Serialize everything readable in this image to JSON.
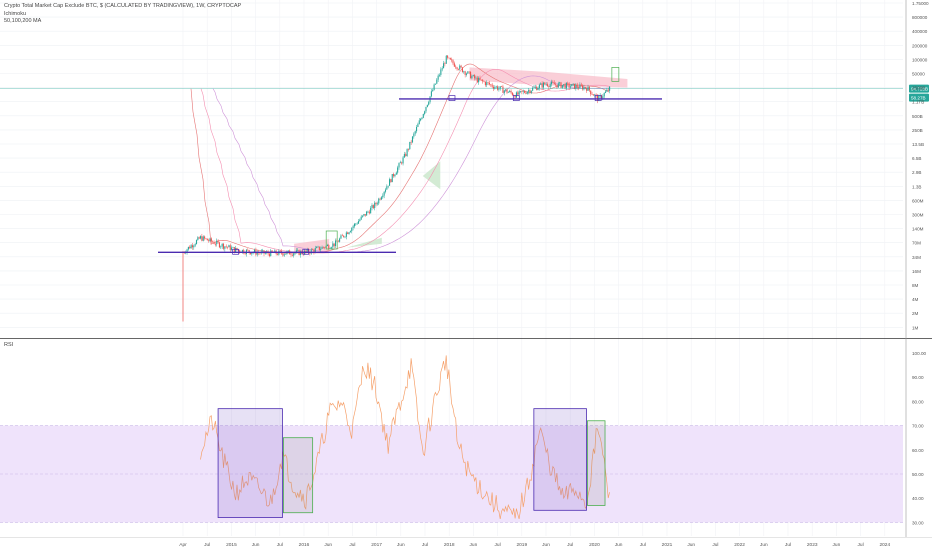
{
  "header": {
    "title": "Crypto Total Market Cap Exclude BTC, $ (CALCULATED BY TRADINGVIEW), 1W, CRYPTOCAP",
    "indicator_1": "Ichimoku",
    "indicator_2": "50,100,200 MA"
  },
  "rsi_panel": {
    "title": "RSI"
  },
  "price_tags": {
    "last": "94.723B",
    "ma": "58.27B"
  },
  "colors": {
    "candle_up": "#26a69a",
    "candle_down": "#ef5350",
    "support_line": "#4b2bb0",
    "rsi_line": "#f5a06a",
    "rsi_band": "#efe3fb",
    "box_purple": "#4b2bb0",
    "box_green": "#4caf50",
    "tag_bg": "#26a69a"
  },
  "chart_data": [
    {
      "type": "line",
      "series_desc": "weekly candles, log scale",
      "yscale": "log",
      "y_tick_labels": [
        "1.75000",
        "800000",
        "400000",
        "200000",
        "100000",
        "50000",
        "2500B",
        "1.1TB",
        "500B",
        "250B",
        "13.5B",
        "6.5B",
        "2.9B",
        "1.3B",
        "600M",
        "300M",
        "140M",
        "70M",
        "34M",
        "16M",
        "8M",
        "4M",
        "2M",
        "1M"
      ],
      "x_tick_labels": [
        "Apr",
        "Jul",
        "2015",
        "Jun",
        "Jul",
        "2016",
        "Jun",
        "Jul",
        "2017",
        "Jun",
        "Jul",
        "2018",
        "Jun",
        "Jul",
        "2019",
        "Jun",
        "Jul",
        "2020",
        "Jun",
        "Jul",
        "2021",
        "Jun",
        "Jul",
        "2022",
        "Jun",
        "Jul",
        "2023",
        "Jun",
        "Jul",
        "2024"
      ],
      "series": [
        {
          "name": "price",
          "x": [
            "2014-04",
            "2014-07",
            "2015-01",
            "2015-06",
            "2016-01",
            "2016-06",
            "2017-01",
            "2017-06",
            "2018-01",
            "2018-06",
            "2019-01",
            "2019-06",
            "2020-01",
            "2020-03",
            "2020-05"
          ],
          "values": [
            40,
            80,
            45,
            38,
            40,
            60,
            400,
            4000,
            400000,
            150000,
            70000,
            120000,
            100000,
            58000,
            94723
          ]
        }
      ],
      "annotations": [
        "support line 2014-2016 at ~40M",
        "support line 2018-2020 at ~58B",
        "Ichimoku cloud"
      ]
    },
    {
      "type": "line",
      "title": "RSI",
      "ylim": [
        25,
        105
      ],
      "y_tick_labels": [
        "100.00",
        "90.00",
        "80.00",
        "70.00",
        "60.00",
        "50.00",
        "40.00",
        "30.00"
      ],
      "band": [
        30,
        70
      ],
      "series": [
        {
          "name": "RSI",
          "x": [
            "2014-07",
            "2014-09",
            "2014-11",
            "2015-01",
            "2015-03",
            "2015-05",
            "2015-07",
            "2015-09",
            "2015-11",
            "2016-01",
            "2016-03",
            "2016-05",
            "2016-07",
            "2016-09",
            "2016-11",
            "2017-01",
            "2017-03",
            "2017-05",
            "2017-07",
            "2017-09",
            "2017-11",
            "2018-01",
            "2018-03",
            "2018-05",
            "2018-07",
            "2018-09",
            "2018-11",
            "2019-01",
            "2019-03",
            "2019-05",
            "2019-07",
            "2019-09",
            "2019-11",
            "2020-01",
            "2020-03",
            "2020-05"
          ],
          "values": [
            60,
            72,
            55,
            42,
            48,
            44,
            38,
            58,
            45,
            40,
            55,
            75,
            80,
            68,
            96,
            85,
            62,
            78,
            95,
            58,
            80,
            98,
            62,
            50,
            44,
            38,
            34,
            32,
            45,
            68,
            52,
            40,
            44,
            38,
            70,
            38
          ]
        }
      ]
    }
  ]
}
